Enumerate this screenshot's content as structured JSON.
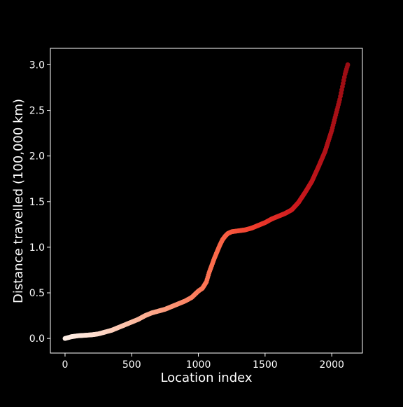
{
  "chart_data": {
    "type": "scatter",
    "title": "",
    "xlabel": "Location index",
    "ylabel": "Distance travelled (100,000 km)",
    "xlim": [
      -110,
      2230
    ],
    "ylim": [
      -0.16,
      3.18
    ],
    "xticks": [
      0,
      500,
      1000,
      1500,
      2000
    ],
    "yticks": [
      0.0,
      0.5,
      1.0,
      1.5,
      2.0,
      2.5,
      3.0
    ],
    "xtick_labels": [
      "0",
      "500",
      "1000",
      "1500",
      "2000"
    ],
    "ytick_labels": [
      "0.0",
      "0.5",
      "1.0",
      "1.5",
      "2.0",
      "2.5",
      "3.0"
    ],
    "colormap": "Reds",
    "background_color": "#000000",
    "foreground_color": "#ffffff",
    "grid": false,
    "legend": "none",
    "series": [
      {
        "x": [
          0,
          50,
          100,
          150,
          200,
          250,
          300,
          350,
          400,
          450,
          500,
          550,
          600,
          650,
          700,
          750,
          800,
          850,
          900,
          950,
          1000,
          1030,
          1060,
          1080,
          1100,
          1120,
          1140,
          1160,
          1180,
          1200,
          1220,
          1250,
          1300,
          1350,
          1400,
          1450,
          1500,
          1550,
          1600,
          1650,
          1700,
          1750,
          1800,
          1850,
          1900,
          1950,
          2000,
          2030,
          2060,
          2080,
          2100,
          2120
        ],
        "y": [
          0.0,
          0.02,
          0.03,
          0.035,
          0.04,
          0.05,
          0.07,
          0.09,
          0.12,
          0.15,
          0.18,
          0.21,
          0.25,
          0.28,
          0.3,
          0.32,
          0.35,
          0.38,
          0.41,
          0.45,
          0.52,
          0.55,
          0.62,
          0.72,
          0.8,
          0.88,
          0.95,
          1.02,
          1.08,
          1.12,
          1.15,
          1.17,
          1.18,
          1.19,
          1.21,
          1.24,
          1.27,
          1.31,
          1.34,
          1.37,
          1.41,
          1.49,
          1.6,
          1.72,
          1.88,
          2.05,
          2.28,
          2.45,
          2.62,
          2.76,
          2.9,
          3.0
        ]
      }
    ]
  }
}
